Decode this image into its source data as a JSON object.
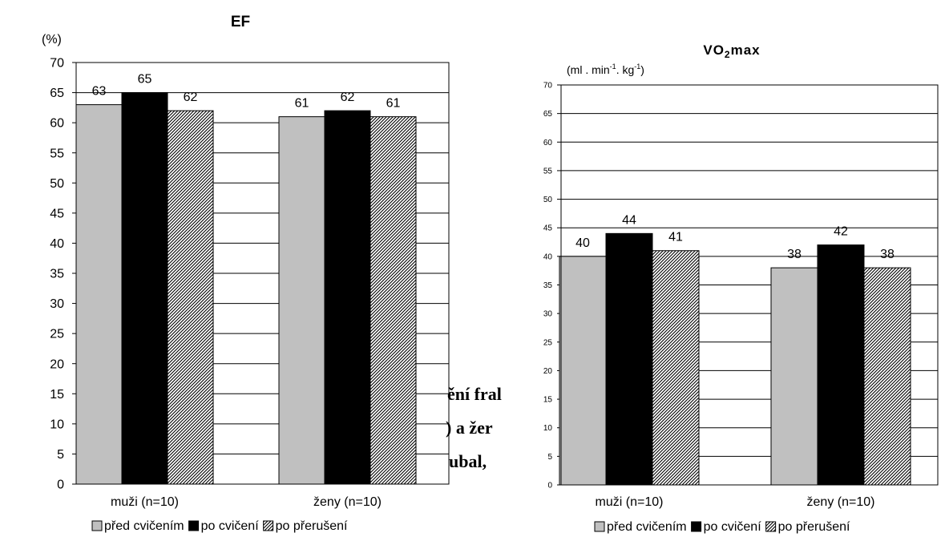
{
  "background_text": [
    "ění fral",
    ") a žer",
    "ubal, "
  ],
  "patterns": {
    "pred": {
      "fill": "#c0c0c0"
    },
    "po": {
      "fill": "#000000"
    },
    "preruseni": {
      "fill": "hatch"
    }
  },
  "chart_data": [
    {
      "type": "bar",
      "title": "EF",
      "ylabel": "(%)",
      "categories": [
        "muži (n=10)",
        "ženy (n=10)"
      ],
      "series": [
        {
          "name": "před cvičením",
          "values": [
            63,
            61
          ],
          "color": "#c0c0c0"
        },
        {
          "name": "po cvičení",
          "values": [
            65,
            62
          ],
          "color": "#000000"
        },
        {
          "name": "po přerušení",
          "values": [
            62,
            61
          ],
          "pattern": "diagonal-hatch"
        }
      ],
      "ylim": [
        0,
        70
      ],
      "yticks": [
        "0",
        "5",
        "10",
        "15",
        "20",
        "25",
        "30",
        "35",
        "40",
        "45",
        "50",
        "55",
        "60",
        "65",
        "70"
      ],
      "grid": true,
      "legend": "bottom"
    },
    {
      "type": "bar",
      "title": "VO₂max",
      "title_main": "VO",
      "title_sub": "2",
      "title_rest": "max",
      "ylabel_parts": [
        "(ml . min",
        "-1",
        ". kg",
        "-1",
        ")"
      ],
      "categories": [
        "muži (n=10)",
        "ženy (n=10)"
      ],
      "series": [
        {
          "name": "před cvičením",
          "values": [
            40,
            38
          ],
          "color": "#c0c0c0"
        },
        {
          "name": "po cvičení",
          "values": [
            44,
            42
          ],
          "color": "#000000"
        },
        {
          "name": "po přerušení",
          "values": [
            41,
            38
          ],
          "pattern": "diagonal-hatch"
        }
      ],
      "ylim": [
        0,
        70
      ],
      "yticks": [
        "0",
        "5",
        "10",
        "15",
        "20",
        "25",
        "30",
        "35",
        "40",
        "45",
        "50",
        "55",
        "60",
        "65",
        "70"
      ],
      "grid": true,
      "legend": "bottom"
    }
  ]
}
